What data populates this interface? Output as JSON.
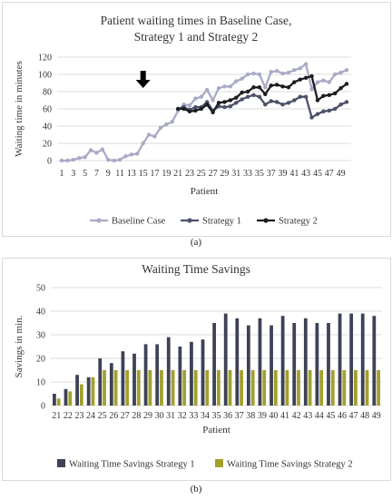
{
  "panels": {
    "a": {
      "label": "(a)"
    },
    "b": {
      "label": "(b)"
    }
  },
  "chart_data": [
    {
      "type": "line",
      "title": "Patient waiting times in Baseline Case,",
      "title_line2": "Strategy 1 and Strategy 2",
      "xlabel": "Patient",
      "ylabel": "Waiting time in minutes",
      "x": [
        1,
        2,
        3,
        4,
        5,
        6,
        7,
        8,
        9,
        10,
        11,
        12,
        13,
        14,
        15,
        16,
        17,
        18,
        19,
        20,
        21,
        22,
        23,
        24,
        25,
        26,
        27,
        28,
        29,
        30,
        31,
        32,
        33,
        34,
        35,
        36,
        37,
        38,
        39,
        40,
        41,
        42,
        43,
        44,
        45,
        46,
        47,
        48,
        49,
        50
      ],
      "x_tick_labels": [
        "1",
        "3",
        "5",
        "7",
        "9",
        "11",
        "13",
        "15",
        "17",
        "19",
        "21",
        "23",
        "25",
        "27",
        "29",
        "31",
        "33",
        "35",
        "37",
        "39",
        "41",
        "43",
        "45",
        "47",
        "49"
      ],
      "ylim": [
        0,
        120
      ],
      "y_ticks": [
        0,
        20,
        40,
        60,
        80,
        100,
        120
      ],
      "grid": true,
      "legend_position": "bottom",
      "annotation": {
        "type": "down-arrow",
        "x": 15
      },
      "series": [
        {
          "name": "Baseline Case",
          "color": "#a9abc6",
          "values": [
            0,
            0,
            1,
            3,
            4,
            12,
            9,
            13,
            1,
            0,
            1,
            5,
            7,
            8,
            20,
            30,
            28,
            38,
            42,
            45,
            58,
            65,
            64,
            72,
            74,
            82,
            70,
            84,
            86,
            86,
            92,
            95,
            100,
            101,
            100,
            85,
            103,
            104,
            101,
            102,
            105,
            107,
            112,
            83,
            91,
            93,
            91,
            100,
            102,
            105
          ]
        },
        {
          "name": "Strategy 1",
          "color": "#4c5069",
          "values": [
            null,
            null,
            null,
            null,
            null,
            null,
            null,
            null,
            null,
            null,
            null,
            null,
            null,
            null,
            null,
            null,
            null,
            null,
            null,
            null,
            60,
            62,
            59,
            62,
            62,
            68,
            58,
            63,
            62,
            63,
            67,
            71,
            74,
            76,
            74,
            65,
            69,
            68,
            65,
            67,
            70,
            74,
            74,
            50,
            54,
            57,
            58,
            60,
            65,
            68
          ]
        },
        {
          "name": "Strategy 2",
          "color": "#1c1c22",
          "values": [
            null,
            null,
            null,
            null,
            null,
            null,
            null,
            null,
            null,
            null,
            null,
            null,
            null,
            null,
            null,
            null,
            null,
            null,
            null,
            null,
            60,
            60,
            57,
            58,
            60,
            65,
            56,
            67,
            68,
            70,
            73,
            79,
            80,
            85,
            85,
            77,
            87,
            88,
            86,
            85,
            91,
            94,
            96,
            98,
            70,
            75,
            76,
            78,
            84,
            89
          ]
        }
      ]
    },
    {
      "type": "bar",
      "title": "Waiting Time Savings",
      "xlabel": "Patient",
      "ylabel": "Savings in min.",
      "categories": [
        "21",
        "22",
        "23",
        "24",
        "25",
        "26",
        "27",
        "28",
        "29",
        "30",
        "31",
        "32",
        "33",
        "34",
        "35",
        "36",
        "37",
        "38",
        "39",
        "40",
        "41",
        "42",
        "43",
        "44",
        "45",
        "46",
        "47",
        "48",
        "49"
      ],
      "ylim": [
        0,
        50
      ],
      "y_ticks": [
        0,
        10,
        20,
        30,
        40,
        50
      ],
      "grid": true,
      "legend_position": "bottom",
      "series": [
        {
          "name": "Waiting Time Savings Strategy 1",
          "color": "#3e4256",
          "values": [
            5,
            7,
            13,
            12,
            20,
            18,
            23,
            22,
            26,
            26,
            29,
            25,
            27,
            28,
            35,
            39,
            37,
            34,
            37,
            34,
            38,
            35,
            37,
            35,
            35,
            39,
            39,
            39,
            38
          ]
        },
        {
          "name": "Waiting Time Savings Strategy 2",
          "color": "#a3a02e",
          "values": [
            3,
            6,
            9,
            12,
            15,
            15,
            15,
            15,
            15,
            15,
            15,
            15,
            15,
            15,
            15,
            15,
            15,
            15,
            15,
            15,
            15,
            15,
            15,
            15,
            15,
            15,
            15,
            15,
            15
          ]
        }
      ]
    }
  ]
}
